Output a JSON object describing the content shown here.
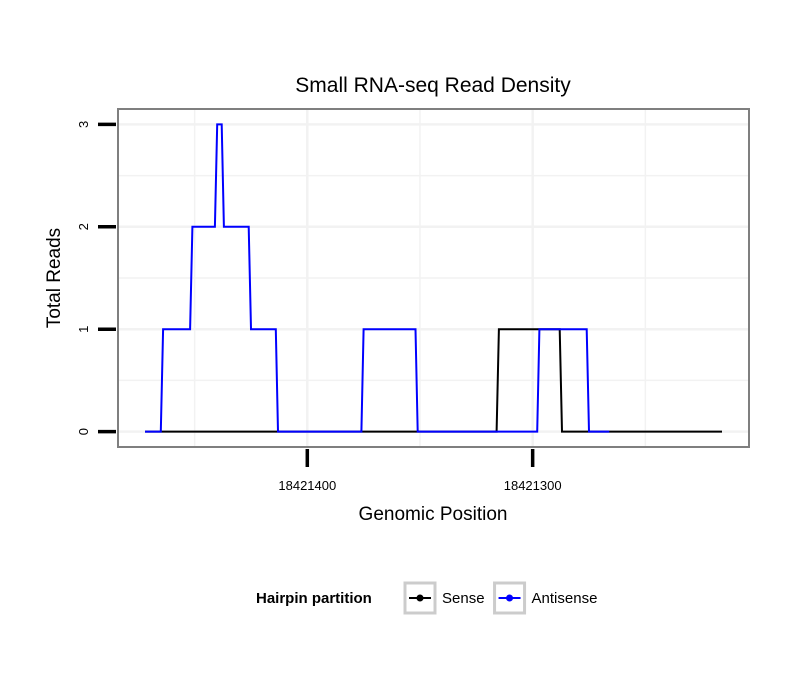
{
  "chart_data": {
    "type": "line",
    "title": "Small RNA-seq Read Density",
    "xlabel": "Genomic Position",
    "ylabel": "Total Reads",
    "x_reversed": true,
    "xlim": [
      18421484,
      18421204
    ],
    "ylim": [
      -0.15,
      3.15
    ],
    "grid": true,
    "x_ticks": [
      {
        "value": 18421400,
        "label": "18421400"
      },
      {
        "value": 18421300,
        "label": "18421300"
      }
    ],
    "y_ticks": [
      {
        "value": 0,
        "label": "0"
      },
      {
        "value": 1,
        "label": "1"
      },
      {
        "value": 2,
        "label": "2"
      },
      {
        "value": 3,
        "label": "3"
      }
    ],
    "series": [
      {
        "name": "Sense",
        "color": "#000000",
        "points": [
          [
            18421472,
            0
          ],
          [
            18421316,
            0
          ],
          [
            18421315,
            1
          ],
          [
            18421288,
            1
          ],
          [
            18421287,
            0
          ],
          [
            18421216,
            0
          ]
        ]
      },
      {
        "name": "Antisense",
        "color": "#0000ff",
        "points": [
          [
            18421472,
            0
          ],
          [
            18421465,
            0
          ],
          [
            18421464,
            1
          ],
          [
            18421452,
            1
          ],
          [
            18421451,
            2
          ],
          [
            18421441,
            2
          ],
          [
            18421440,
            3
          ],
          [
            18421438,
            3
          ],
          [
            18421437,
            2
          ],
          [
            18421426,
            2
          ],
          [
            18421425,
            1
          ],
          [
            18421414,
            1
          ],
          [
            18421413,
            0
          ],
          [
            18421376,
            0
          ],
          [
            18421375,
            1
          ],
          [
            18421352,
            1
          ],
          [
            18421351,
            0
          ],
          [
            18421298,
            0
          ],
          [
            18421297,
            1
          ],
          [
            18421276,
            1
          ],
          [
            18421275,
            0
          ],
          [
            18421266,
            0
          ]
        ]
      }
    ],
    "legend": {
      "title": "Hairpin partition",
      "placement": "bottom",
      "entries": [
        "Sense",
        "Antisense"
      ]
    }
  }
}
